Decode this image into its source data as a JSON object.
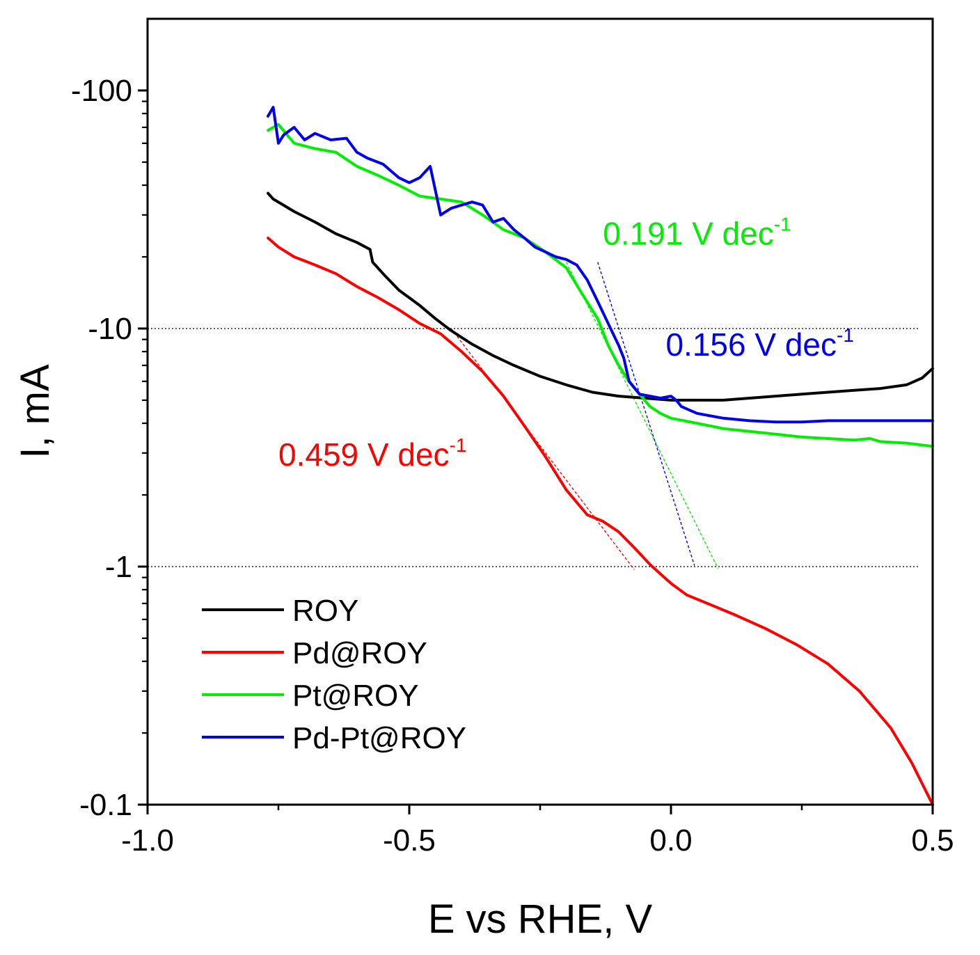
{
  "chart_data": {
    "type": "line",
    "title": "",
    "xlabel": "E vs RHE, V",
    "ylabel": "I, mA",
    "xlim": [
      -1.0,
      0.5
    ],
    "ylim": [
      0.1,
      200
    ],
    "y_scale": "log",
    "x_ticks": [
      {
        "value": -1.0,
        "label": "-1.0"
      },
      {
        "value": -0.5,
        "label": "-0.5"
      },
      {
        "value": 0.0,
        "label": "0.0"
      },
      {
        "value": 0.5,
        "label": "0.5"
      }
    ],
    "y_ticks": [
      {
        "value": 100,
        "label": "-100"
      },
      {
        "value": 10,
        "label": "-10"
      },
      {
        "value": 1,
        "label": "-1"
      },
      {
        "value": 0.1,
        "label": "-0.1"
      }
    ],
    "reference_lines_y": [
      10,
      1
    ],
    "legend_position": "bottom-left",
    "series": [
      {
        "name": "ROY",
        "color": "#000000",
        "x": [
          -0.77,
          -0.76,
          -0.72,
          -0.68,
          -0.64,
          -0.6,
          -0.575,
          -0.57,
          -0.55,
          -0.52,
          -0.48,
          -0.45,
          -0.42,
          -0.38,
          -0.34,
          -0.3,
          -0.25,
          -0.2,
          -0.15,
          -0.1,
          -0.05,
          0.0,
          0.05,
          0.1,
          0.15,
          0.2,
          0.25,
          0.3,
          0.35,
          0.4,
          0.45,
          0.48,
          0.5
        ],
        "y": [
          37,
          35,
          31,
          28,
          25,
          23,
          21.5,
          19,
          17,
          14.5,
          12.5,
          11.0,
          9.8,
          8.6,
          7.7,
          7.0,
          6.3,
          5.8,
          5.4,
          5.2,
          5.1,
          5.0,
          5.0,
          5.0,
          5.1,
          5.2,
          5.3,
          5.4,
          5.5,
          5.6,
          5.8,
          6.2,
          6.8
        ]
      },
      {
        "name": "Pd@ROY",
        "color": "#ff0000",
        "x": [
          -0.77,
          -0.75,
          -0.72,
          -0.68,
          -0.64,
          -0.6,
          -0.56,
          -0.52,
          -0.48,
          -0.44,
          -0.4,
          -0.36,
          -0.32,
          -0.28,
          -0.24,
          -0.2,
          -0.16,
          -0.13,
          -0.1,
          -0.07,
          -0.04,
          0.0,
          0.03,
          0.07,
          0.12,
          0.18,
          0.24,
          0.3,
          0.36,
          0.42,
          0.46,
          0.5
        ],
        "y": [
          24,
          22,
          20,
          18.5,
          17,
          15,
          13.5,
          12,
          10.5,
          9.5,
          8.0,
          6.6,
          5.2,
          3.9,
          2.9,
          2.1,
          1.65,
          1.55,
          1.4,
          1.2,
          1.02,
          0.85,
          0.76,
          0.7,
          0.63,
          0.55,
          0.47,
          0.39,
          0.3,
          0.21,
          0.15,
          0.1
        ]
      },
      {
        "name": "Pt@ROY",
        "color": "#00ee00",
        "x": [
          -0.77,
          -0.75,
          -0.72,
          -0.68,
          -0.64,
          -0.6,
          -0.56,
          -0.52,
          -0.48,
          -0.44,
          -0.4,
          -0.36,
          -0.32,
          -0.28,
          -0.24,
          -0.2,
          -0.17,
          -0.14,
          -0.12,
          -0.1,
          -0.08,
          -0.06,
          -0.04,
          -0.02,
          0.0,
          0.05,
          0.1,
          0.15,
          0.2,
          0.25,
          0.3,
          0.35,
          0.38,
          0.4,
          0.45,
          0.5
        ],
        "y": [
          68,
          72,
          60,
          57,
          55,
          48,
          44,
          40,
          36,
          35,
          34,
          30,
          26,
          24,
          21,
          18,
          14,
          11,
          8.5,
          7.0,
          6.0,
          5.3,
          4.7,
          4.4,
          4.2,
          4.0,
          3.8,
          3.7,
          3.6,
          3.5,
          3.45,
          3.4,
          3.45,
          3.35,
          3.3,
          3.2
        ]
      },
      {
        "name": "Pd-Pt@ROY",
        "color": "#0000ee",
        "x": [
          -0.77,
          -0.76,
          -0.75,
          -0.74,
          -0.72,
          -0.7,
          -0.68,
          -0.65,
          -0.62,
          -0.6,
          -0.58,
          -0.55,
          -0.52,
          -0.5,
          -0.48,
          -0.46,
          -0.44,
          -0.42,
          -0.4,
          -0.38,
          -0.36,
          -0.34,
          -0.32,
          -0.3,
          -0.28,
          -0.26,
          -0.24,
          -0.22,
          -0.2,
          -0.18,
          -0.16,
          -0.14,
          -0.12,
          -0.1,
          -0.09,
          -0.08,
          -0.06,
          -0.04,
          -0.02,
          0.0,
          0.01,
          0.02,
          0.05,
          0.1,
          0.15,
          0.2,
          0.25,
          0.3,
          0.35,
          0.4,
          0.45,
          0.5
        ],
        "y": [
          78,
          85,
          60,
          65,
          70,
          62,
          66,
          62,
          63,
          55,
          52,
          49,
          43,
          41,
          43,
          48,
          30,
          32,
          33,
          34,
          33,
          28,
          29,
          26,
          24,
          22,
          21,
          20,
          19.5,
          18.5,
          16,
          13,
          10.5,
          8.5,
          7.5,
          6.0,
          5.3,
          5.2,
          5.1,
          5.2,
          5.0,
          4.7,
          4.4,
          4.2,
          4.1,
          4.05,
          4.05,
          4.1,
          4.1,
          4.1,
          4.1,
          4.1
        ]
      }
    ],
    "fit_lines": [
      {
        "color": "#ff0000",
        "x": [
          -0.42,
          -0.07
        ],
        "y": [
          10,
          0.97
        ]
      },
      {
        "color": "#00ee00",
        "x": [
          -0.2,
          0.09
        ],
        "y": [
          19,
          0.98
        ]
      },
      {
        "color": "#0000ee",
        "x": [
          -0.14,
          0.045
        ],
        "y": [
          19,
          1.01
        ]
      }
    ],
    "annotations": [
      {
        "text": "0.459 V dec",
        "sup": "-1",
        "color": "#ff0000",
        "x": -0.75,
        "y": 2.65
      },
      {
        "text": "0.191 V dec",
        "sup": "-1",
        "color": "#00ee00",
        "x": -0.13,
        "y": 22.5
      },
      {
        "text": "0.156 V dec",
        "sup": "-1",
        "color": "#0000ee",
        "x": -0.01,
        "y": 7.7
      }
    ]
  }
}
